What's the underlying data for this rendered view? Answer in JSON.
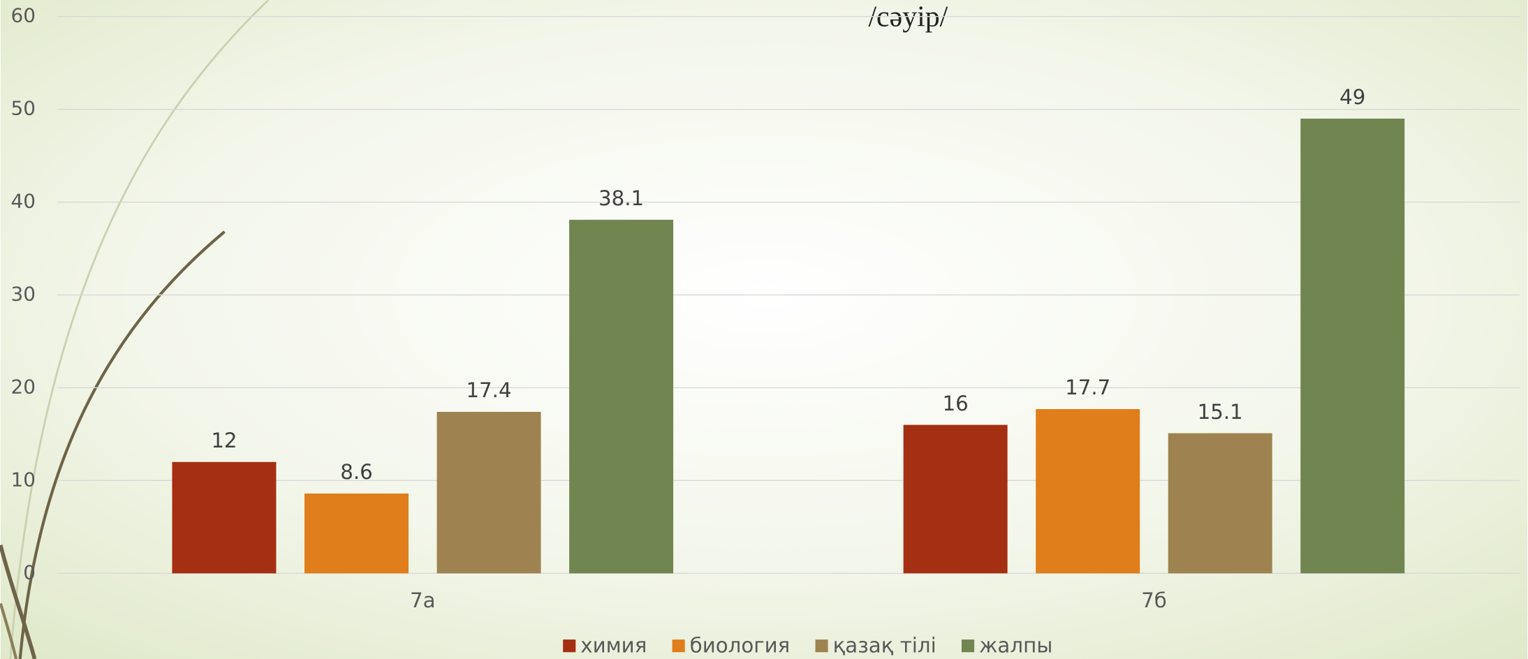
{
  "chart_data": {
    "type": "bar",
    "title": "/сәуір/",
    "categories": [
      "7а",
      "7б"
    ],
    "series": [
      {
        "name": "химия",
        "color": "#a52f12",
        "values": [
          12,
          16
        ]
      },
      {
        "name": "биология",
        "color": "#df7e1a",
        "values": [
          8.6,
          17.7
        ]
      },
      {
        "name": "қазақ тілі",
        "color": "#9e8350",
        "values": [
          17.4,
          15.1
        ]
      },
      {
        "name": "жалпы",
        "color": "#718550",
        "values": [
          38.1,
          49
        ]
      }
    ],
    "ylim": [
      0,
      60
    ],
    "yticks": [
      0,
      10,
      20,
      30,
      40,
      50,
      60
    ],
    "grid": true,
    "legend": "bottom"
  }
}
